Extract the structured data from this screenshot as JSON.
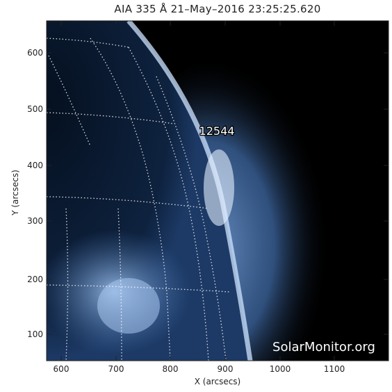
{
  "title": "AIA 335 Å 21–May–2016 23:25:25.620",
  "xlabel": "X (arcsecs)",
  "ylabel": "Y (arcsecs)",
  "x_ticks": [
    "600",
    "700",
    "800",
    "900",
    "1000",
    "1100"
  ],
  "y_ticks": [
    "100",
    "200",
    "300",
    "400",
    "500",
    "600"
  ],
  "region_label": "12544",
  "watermark": "SolarMonitor.org",
  "colors": {
    "limb": "#cfe4ff",
    "corona": "#5b86c0",
    "disk": "#0e1e38",
    "background": "#000000"
  }
}
